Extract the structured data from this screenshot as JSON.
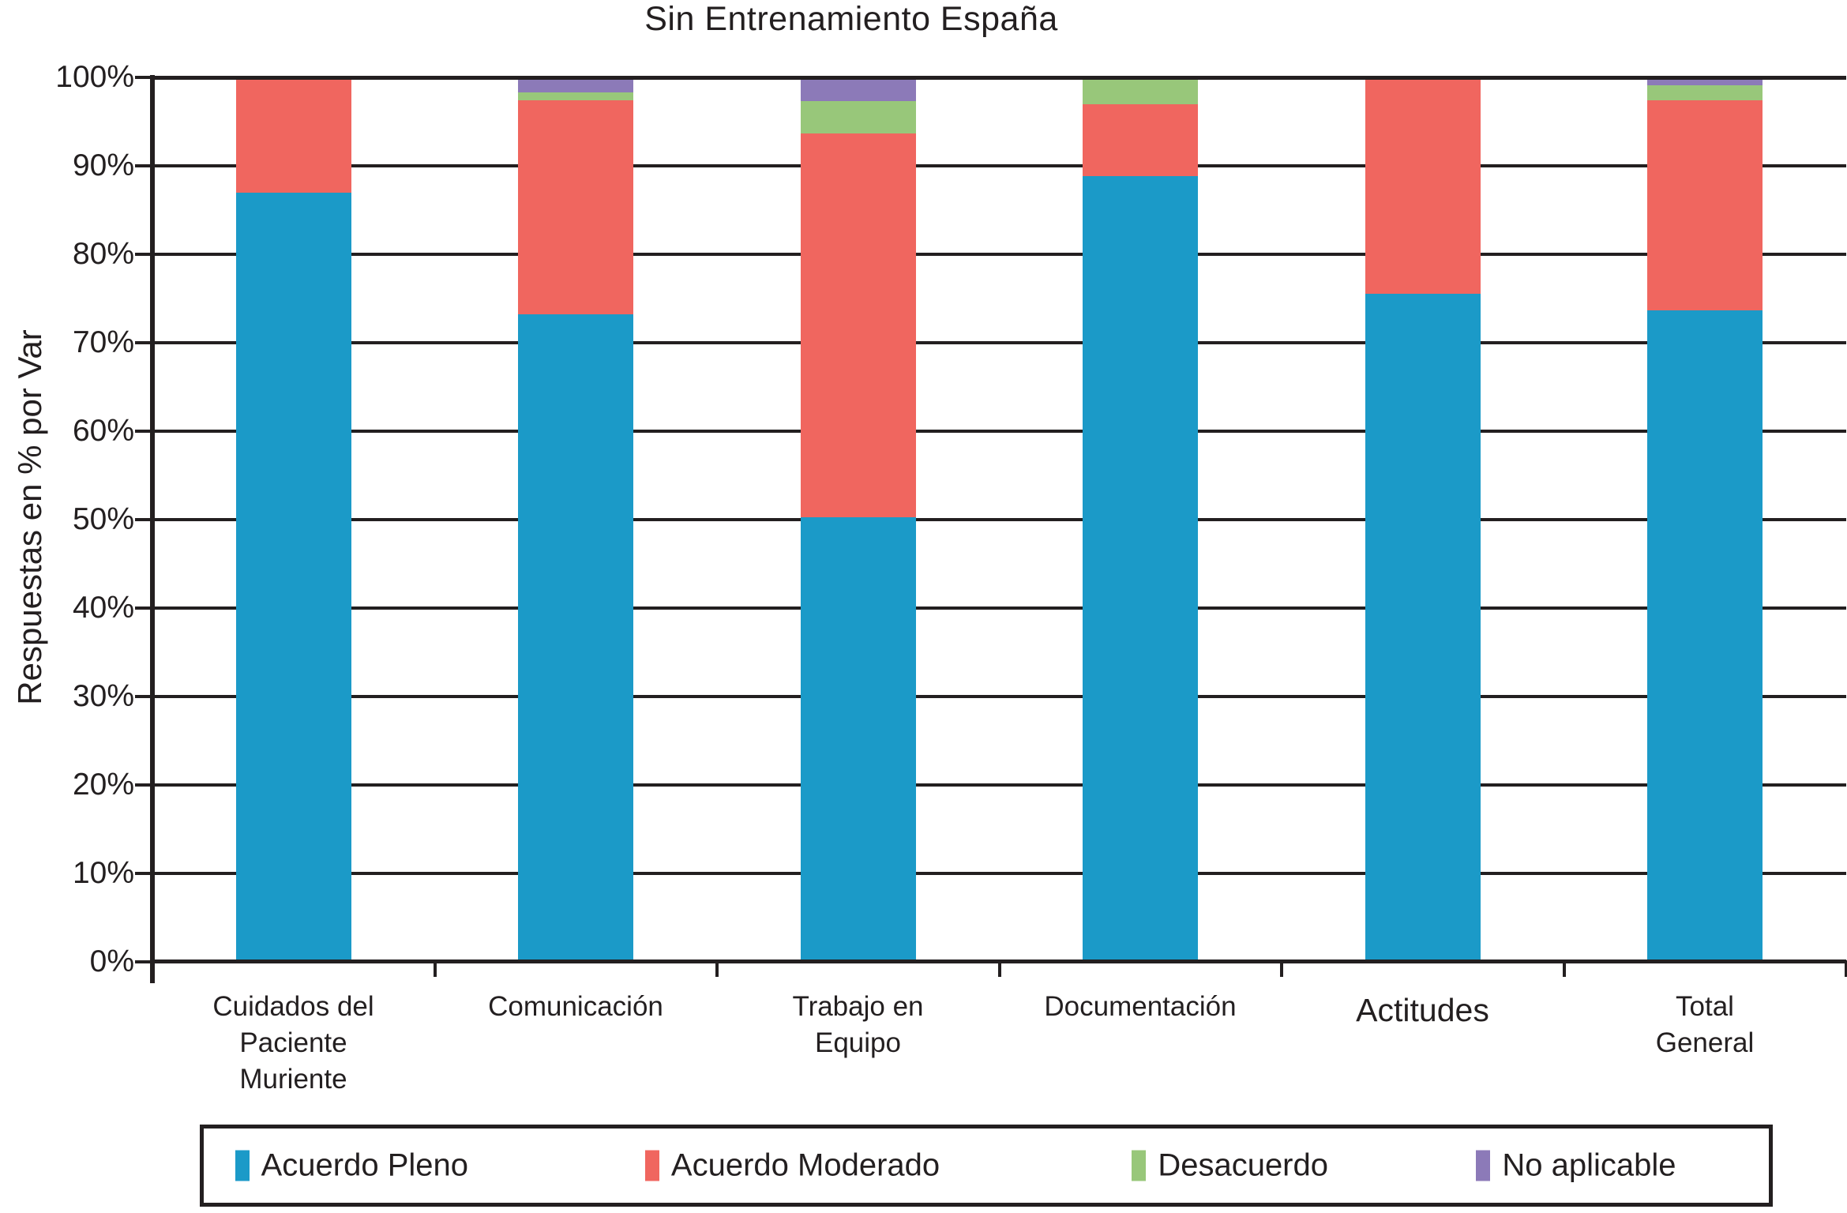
{
  "chart_data": {
    "type": "bar",
    "stacked": true,
    "percent_stacked": true,
    "title": "Sin Entrenamiento España",
    "xlabel": "",
    "ylabel": "Respuestas en % por Var",
    "ylim": [
      0,
      100
    ],
    "y_tick_step": 10,
    "y_ticks": [
      "0%",
      "10%",
      "20%",
      "30%",
      "40%",
      "50%",
      "60%",
      "70%",
      "80%",
      "90%",
      "100%"
    ],
    "grid": true,
    "legend_position": "bottom",
    "categories": [
      "Cuidados del\nPaciente\nMuriente",
      "Comunicación",
      "Trabajo en\nEquipo",
      "Documentación",
      "Actitudes",
      "Total\nGeneral"
    ],
    "series": [
      {
        "name": "Acuerdo Pleno",
        "color": "#1B9AC8",
        "values": [
          87.0,
          73.2,
          50.3,
          88.8,
          75.5,
          73.7
        ]
      },
      {
        "name": "Acuerdo Moderado",
        "color": "#F0665F",
        "values": [
          13.0,
          24.2,
          43.4,
          8.2,
          24.5,
          23.7
        ]
      },
      {
        "name": "Desacuerdo",
        "color": "#98C77A",
        "values": [
          0.0,
          0.9,
          3.6,
          3.0,
          0.0,
          1.7
        ]
      },
      {
        "name": "No aplicable",
        "color": "#8C7AB8",
        "values": [
          0.0,
          1.7,
          2.7,
          0.0,
          0.0,
          0.9
        ]
      }
    ],
    "colors": {
      "line": "#231F20",
      "background": "#FFFFFF"
    }
  }
}
